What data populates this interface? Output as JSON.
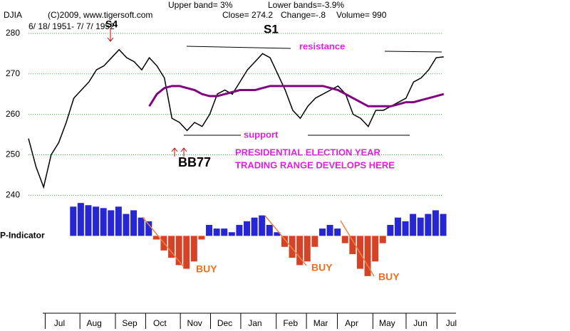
{
  "header": {
    "symbol": "DJIA",
    "copyright": "(C)2009, www.tigersoft.com",
    "upper_band": "Upper band= 3%",
    "lower_bands": "Lower bands=-3.9%",
    "close": "Close=  274.2",
    "change": "Change=-.8",
    "volume": "Volume= 990",
    "date_range": "6/ 18/ 1951- 7/ 7/ 1952"
  },
  "chart_data": [
    {
      "type": "line",
      "ylim": [
        239,
        286.5
      ],
      "yticks": [
        240,
        250,
        260,
        270,
        280
      ],
      "grid": true,
      "xlim": [
        0,
        57
      ],
      "xticks": [
        {
          "value": 4.1,
          "label": "Jul"
        },
        {
          "value": 8.7,
          "label": "Aug"
        },
        {
          "value": 13.4,
          "label": "Sep"
        },
        {
          "value": 17.4,
          "label": "Oct"
        },
        {
          "value": 22,
          "label": "Nov"
        },
        {
          "value": 26,
          "label": "Dec"
        },
        {
          "value": 30,
          "label": "Jan"
        },
        {
          "value": 34.7,
          "label": "Feb"
        },
        {
          "value": 38.7,
          "label": "Mar"
        },
        {
          "value": 42.8,
          "label": "Apr"
        },
        {
          "value": 47.5,
          "label": "May"
        },
        {
          "value": 51.9,
          "label": "Jun"
        },
        {
          "value": 56,
          "label": "Jul"
        }
      ],
      "series": [
        {
          "color": "#000000",
          "values": [
            254,
            247,
            242,
            250,
            253,
            258,
            264,
            266,
            268,
            271,
            272,
            274,
            276,
            274,
            273,
            271,
            274,
            272,
            269,
            259,
            258,
            256,
            258,
            257,
            260,
            265,
            266,
            265,
            268,
            271,
            273,
            275,
            274,
            270,
            266,
            261,
            259,
            262,
            264,
            265,
            266,
            267,
            265,
            260,
            259,
            257,
            261,
            261,
            262,
            263,
            264,
            268,
            269,
            271,
            274,
            274.2
          ]
        },
        {
          "color": "#800080",
          "values": [
            null,
            null,
            null,
            null,
            null,
            null,
            null,
            null,
            null,
            null,
            null,
            null,
            null,
            null,
            null,
            null,
            262,
            265,
            266.5,
            267,
            267,
            266.5,
            266,
            265,
            264.5,
            264.5,
            265,
            265.5,
            266,
            266,
            266,
            266.5,
            267,
            267,
            267,
            267,
            267,
            267,
            267,
            267,
            266.5,
            266,
            265,
            264,
            263,
            262,
            262,
            262,
            262,
            262.5,
            263,
            263,
            263.5,
            264,
            264.5,
            265
          ]
        }
      ],
      "annotations": [
        "S4",
        "S1",
        "resistance",
        "support",
        "BB77",
        "PRESIDENTIAL ELECTION YEAR",
        "TRADING RANGE DEVELOPS HERE"
      ]
    },
    {
      "type": "bar",
      "title": "P-Indicator",
      "xlim": [
        0,
        57
      ],
      "ylim": [
        -60,
        50
      ],
      "color_positive": "#0000cc",
      "color_negative": "#cc2200",
      "values": [
        null,
        null,
        null,
        null,
        null,
        null,
        40,
        45,
        42,
        40,
        38,
        35,
        40,
        30,
        35,
        25,
        20,
        -5,
        -20,
        -30,
        -40,
        -45,
        -35,
        -5,
        15,
        10,
        10,
        5,
        15,
        20,
        25,
        28,
        15,
        5,
        -15,
        -30,
        -40,
        -35,
        -15,
        10,
        15,
        10,
        -10,
        -25,
        -45,
        -55,
        -35,
        -10,
        15,
        25,
        20,
        30,
        25,
        30,
        35,
        30
      ],
      "annotations": [
        "BUY",
        "BUY",
        "BUY"
      ]
    }
  ]
}
